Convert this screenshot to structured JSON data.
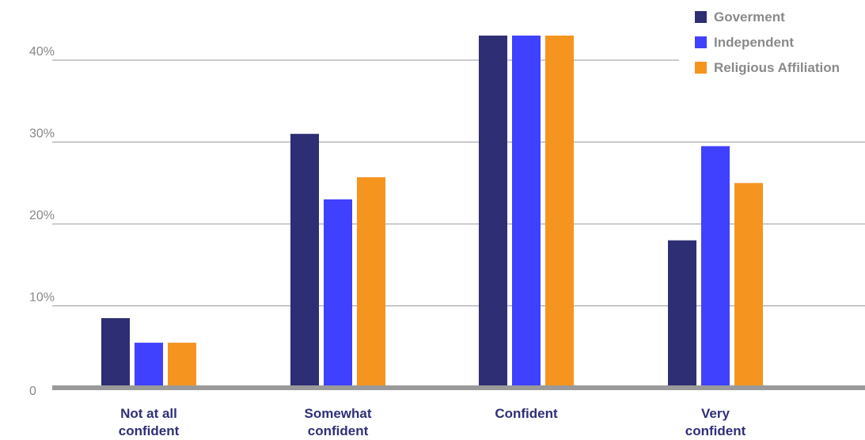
{
  "chart_data": {
    "type": "bar",
    "categories": [
      [
        "Not at all",
        "confident"
      ],
      [
        "Somewhat",
        "confident"
      ],
      [
        "Confident"
      ],
      [
        "Very",
        "confident"
      ]
    ],
    "series": [
      {
        "name": "Goverment",
        "color": "#2e2e74",
        "values": [
          8.5,
          31,
          43,
          18
        ]
      },
      {
        "name": "Independent",
        "color": "#4040ff",
        "values": [
          5.5,
          23,
          43,
          29.5
        ]
      },
      {
        "name": "Religious Affiliation",
        "color": "#f5951f",
        "values": [
          5.5,
          25.7,
          43,
          25
        ]
      }
    ],
    "yticks": [
      {
        "value": 0,
        "label": "0"
      },
      {
        "value": 10,
        "label": "10%"
      },
      {
        "value": 20,
        "label": "20%"
      },
      {
        "value": 30,
        "label": "30%"
      },
      {
        "value": 40,
        "label": "40%"
      }
    ],
    "ylim": [
      0,
      43
    ],
    "grid": true,
    "legend_position": "top-right"
  }
}
